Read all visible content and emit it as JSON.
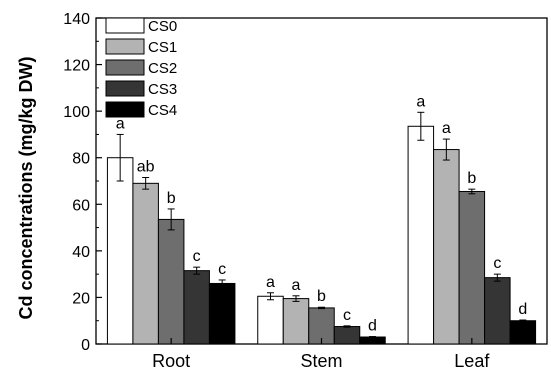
{
  "chart_data": {
    "type": "bar",
    "categories": [
      "Root",
      "Stem",
      "Leaf"
    ],
    "ylabel": "Cd concentrations (mg/kg DW)",
    "xlabel": "",
    "ylim": [
      0,
      140
    ],
    "yticks": [
      "0",
      "20",
      "40",
      "60",
      "80",
      "100",
      "120",
      "140"
    ],
    "legend_position": "top-left",
    "series": [
      {
        "name": "CS0",
        "color": "#ffffff",
        "values": [
          80.0,
          20.5,
          93.5
        ],
        "errors": [
          10.0,
          1.5,
          6.0
        ],
        "letters": [
          "a",
          "a",
          "a"
        ]
      },
      {
        "name": "CS1",
        "color": "#b3b3b3",
        "values": [
          69.0,
          19.5,
          83.5
        ],
        "errors": [
          2.5,
          1.2,
          4.5
        ],
        "letters": [
          "ab",
          "a",
          "a"
        ]
      },
      {
        "name": "CS2",
        "color": "#6e6e6e",
        "values": [
          53.5,
          15.5,
          65.5
        ],
        "errors": [
          4.5,
          0.3,
          1.0
        ],
        "letters": [
          "b",
          "b",
          "b"
        ]
      },
      {
        "name": "CS3",
        "color": "#353535",
        "values": [
          31.5,
          7.5,
          28.5
        ],
        "errors": [
          1.5,
          0.3,
          1.5
        ],
        "letters": [
          "c",
          "c",
          "c"
        ]
      },
      {
        "name": "CS4",
        "color": "#000000",
        "values": [
          26.0,
          3.0,
          10.0
        ],
        "errors": [
          1.5,
          0.2,
          0.3
        ],
        "letters": [
          "c",
          "d",
          "d"
        ]
      }
    ]
  }
}
